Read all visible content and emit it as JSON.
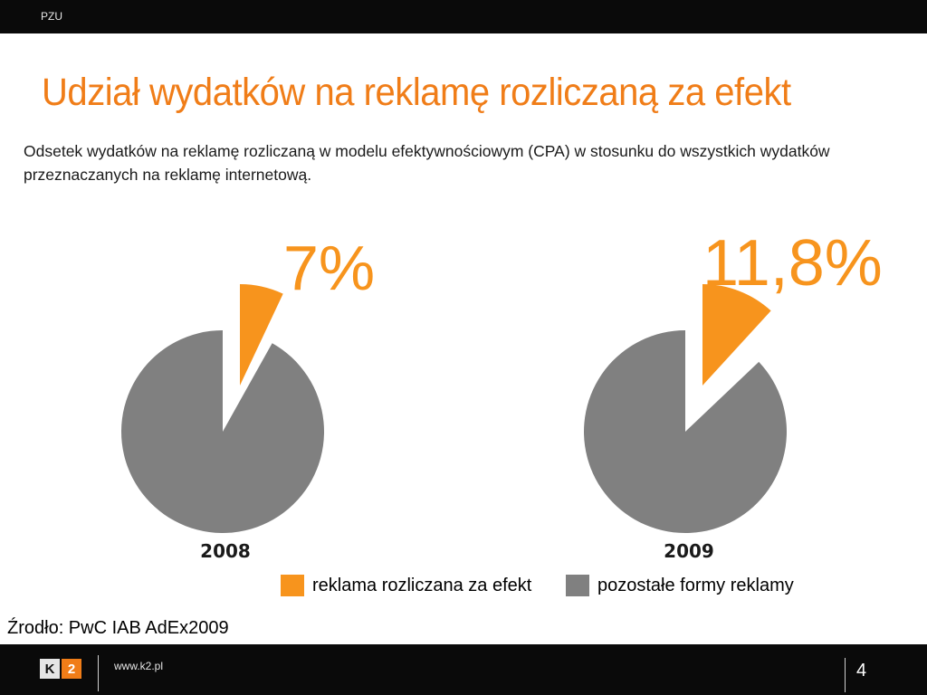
{
  "header": {
    "label": "PZU"
  },
  "title": "Udział wydatków na reklamę rozliczaną za efekt",
  "subtitle": "Odsetek wydatków na reklamę rozliczaną w modelu efektywnościowym (CPA) w stosunku do wszystkich wydatków przeznaczanych na reklamę internetową.",
  "colors": {
    "accent": "#f07d18",
    "slice_highlight": "#f7941d",
    "slice_rest": "#808080"
  },
  "chart_data": [
    {
      "type": "pie",
      "title": "",
      "label": "2008",
      "value_label": "7%",
      "categories": [
        "reklama rozliczana za efekt",
        "pozostałe formy reklamy"
      ],
      "values": [
        7,
        93
      ],
      "exploded": "reklama rozliczana za efekt"
    },
    {
      "type": "pie",
      "title": "",
      "label": "2009",
      "value_label": "11,8%",
      "categories": [
        "reklama rozliczana za efekt",
        "pozostałe formy reklamy"
      ],
      "values": [
        11.8,
        88.2
      ],
      "exploded": "reklama rozliczana za efekt"
    }
  ],
  "legend": {
    "items": [
      {
        "label": "reklama rozliczana za efekt",
        "color": "#f7941d"
      },
      {
        "label": "pozostałe formy reklamy",
        "color": "#808080"
      }
    ]
  },
  "source": "Źrodło: PwC IAB AdEx2009",
  "footer": {
    "logo_k": "K",
    "logo_2": "2",
    "url": "www.k2.pl",
    "page": "4"
  }
}
